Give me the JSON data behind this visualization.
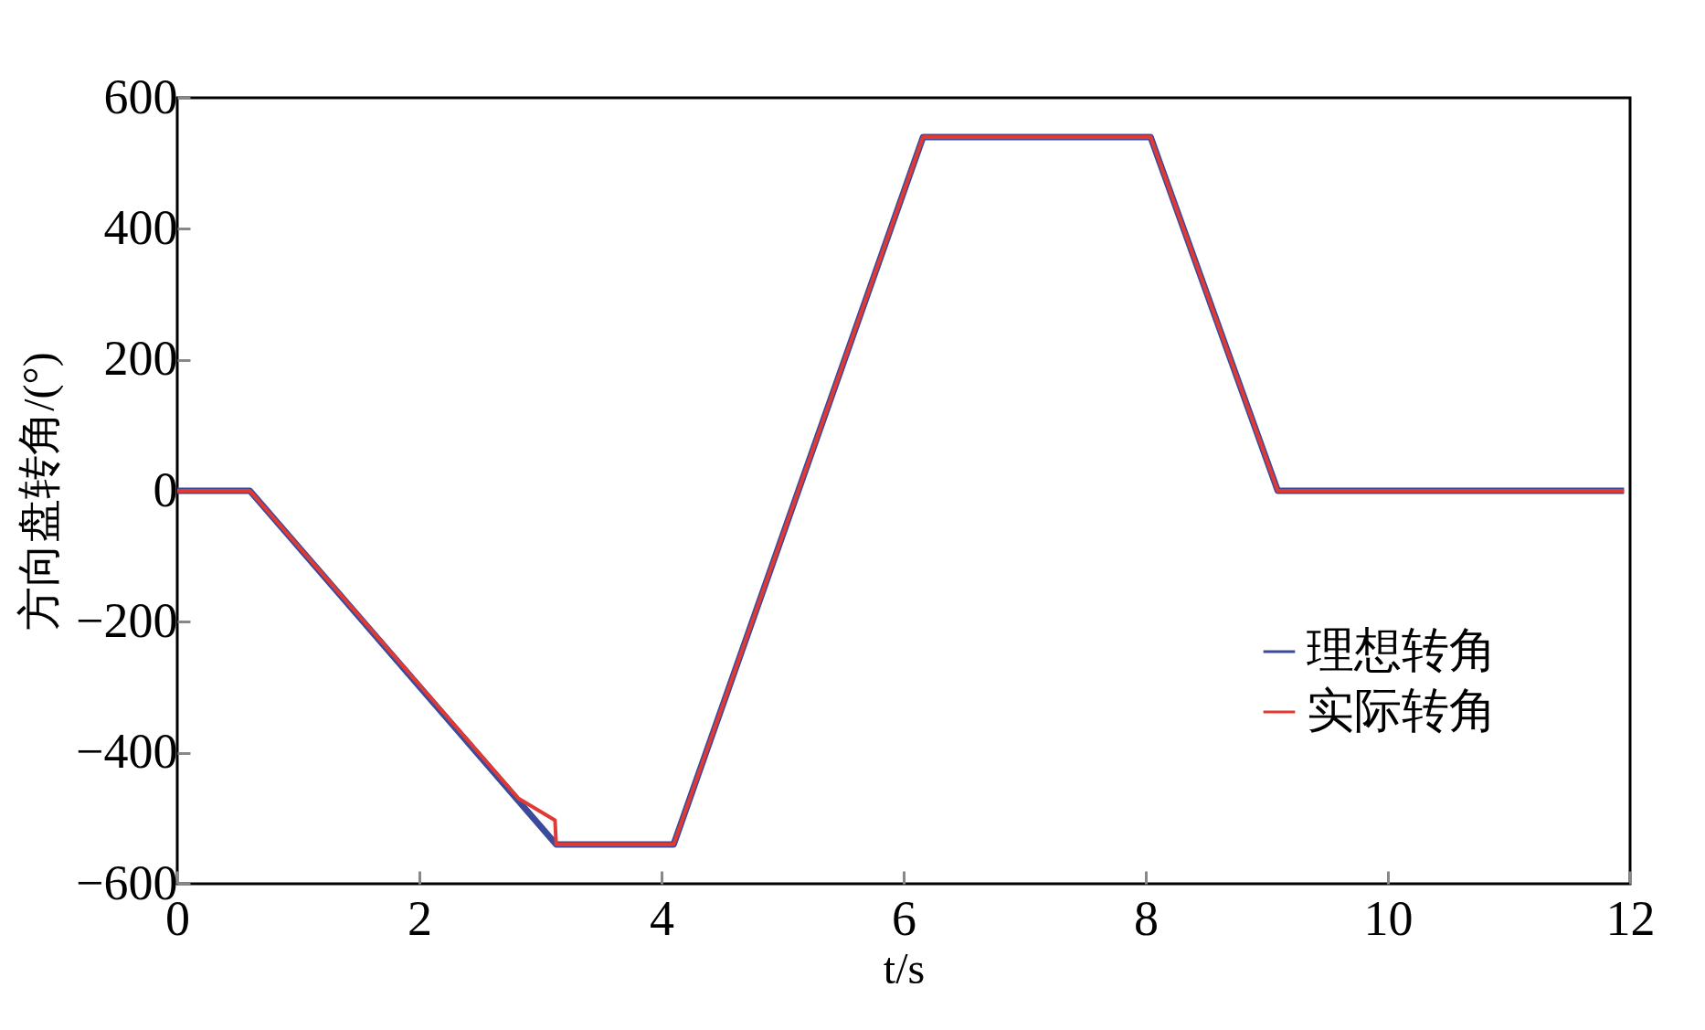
{
  "chart_data": {
    "type": "line",
    "xlabel": "t/s",
    "ylabel": "方向盘转角/(°)",
    "xlim": [
      0,
      12
    ],
    "ylim": [
      -600,
      600
    ],
    "xticks": [
      0,
      2,
      4,
      6,
      8,
      10,
      12
    ],
    "yticks": [
      -600,
      -400,
      -200,
      0,
      200,
      400,
      600
    ],
    "grid": false,
    "legend": "right",
    "marker": "none",
    "line_style": "solid",
    "series": [
      {
        "name": "理想转角",
        "color": "#3b4a9b",
        "x": [
          0,
          0.6,
          3.13,
          4.1,
          6.16,
          8.04,
          9.09,
          11.95
        ],
        "values": [
          0,
          0,
          -540,
          -540,
          540,
          540,
          0,
          0
        ]
      },
      {
        "name": "实际转角",
        "color": "#e03a35",
        "x": [
          0,
          0.6,
          2.82,
          3.12,
          3.13,
          4.1,
          6.16,
          8.04,
          9.09,
          11.95
        ],
        "values": [
          0,
          0,
          -470,
          -503,
          -540,
          -540,
          540,
          540,
          0,
          0
        ]
      }
    ]
  }
}
